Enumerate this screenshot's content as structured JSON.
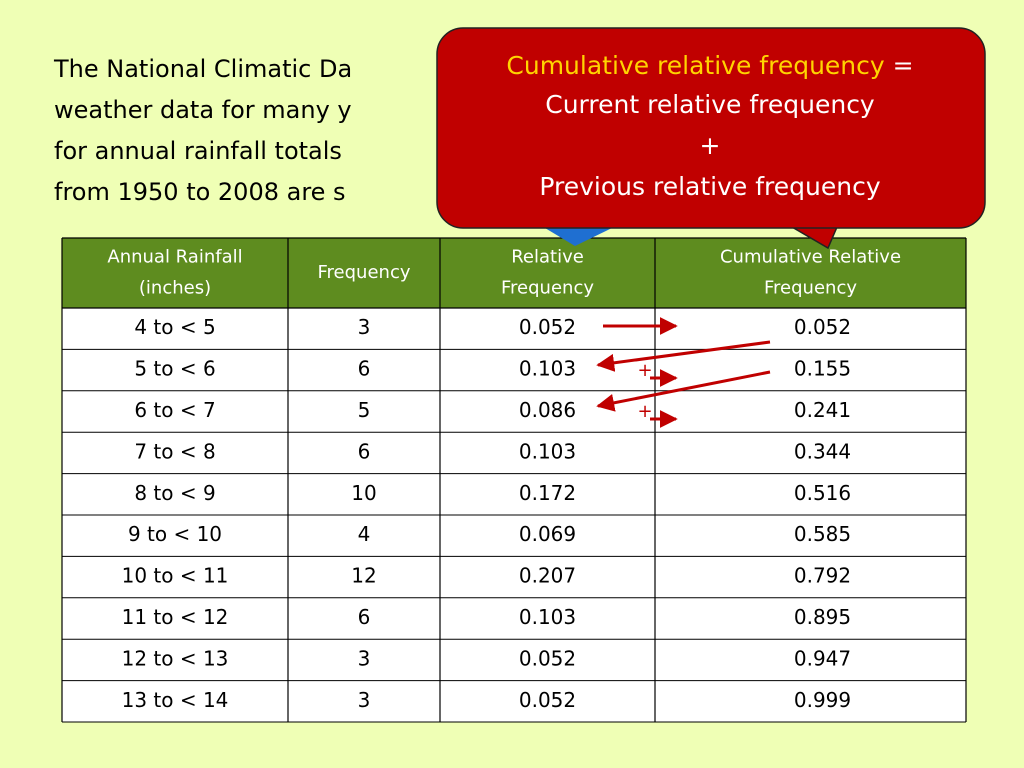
{
  "paragraph": {
    "lines": [
      "The National Climatic Da",
      "weather data for many y",
      "for annual rainfall totals",
      "from 1950 to 2008 are s"
    ]
  },
  "callout": {
    "highlight": "Cumulative relative frequency",
    "equals": "=",
    "lines": [
      "Current relative frequency",
      "+",
      "Previous relative frequency"
    ]
  },
  "table": {
    "headers": [
      [
        "Annual Rainfall",
        "(inches)"
      ],
      [
        "Frequency"
      ],
      [
        "Relative",
        "Frequency"
      ],
      [
        "Cumulative Relative",
        "Frequency"
      ]
    ],
    "rows": [
      [
        "4 to < 5",
        "3",
        "0.052",
        "0.052"
      ],
      [
        "5 to < 6",
        "6",
        "0.103",
        "0.155"
      ],
      [
        "6 to < 7",
        "5",
        "0.086",
        "0.241"
      ],
      [
        "7 to < 8",
        "6",
        "0.103",
        "0.344"
      ],
      [
        "8 to < 9",
        "10",
        "0.172",
        "0.516"
      ],
      [
        "9 to < 10",
        "4",
        "0.069",
        "0.585"
      ],
      [
        "10 to < 11",
        "12",
        "0.207",
        "0.792"
      ],
      [
        "11 to < 12",
        "6",
        "0.103",
        "0.895"
      ],
      [
        "12 to < 13",
        "3",
        "0.052",
        "0.947"
      ],
      [
        "13 to < 14",
        "3",
        "0.052",
        "0.999"
      ]
    ]
  },
  "annotations": [
    "+",
    "+"
  ]
}
